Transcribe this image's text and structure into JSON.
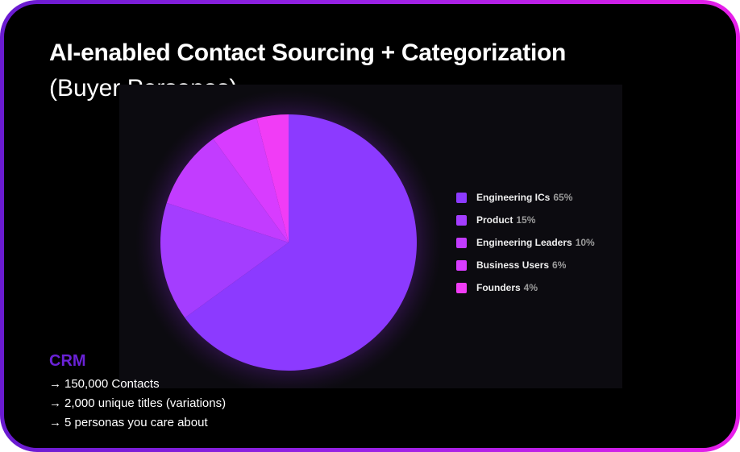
{
  "title": "AI-enabled Contact Sourcing + Categorization",
  "subtitle": "(Buyer Personas)",
  "chart_data": {
    "type": "pie",
    "categories": [
      "Engineering ICs",
      "Product",
      "Engineering Leaders",
      "Business Users",
      "Founders"
    ],
    "values": [
      65,
      15,
      10,
      6,
      4
    ],
    "value_labels": [
      "65%",
      "15%",
      "10%",
      "6%",
      "4%"
    ],
    "colors": [
      "#8c3aff",
      "#a43dff",
      "#c23cff",
      "#d83cff",
      "#f13cf6"
    ],
    "legend_position": "right"
  },
  "crm": {
    "heading": "CRM",
    "lines": [
      "150,000 Contacts",
      "2,000 unique titles (variations)",
      "5 personas you care about"
    ],
    "arrow": "→"
  }
}
